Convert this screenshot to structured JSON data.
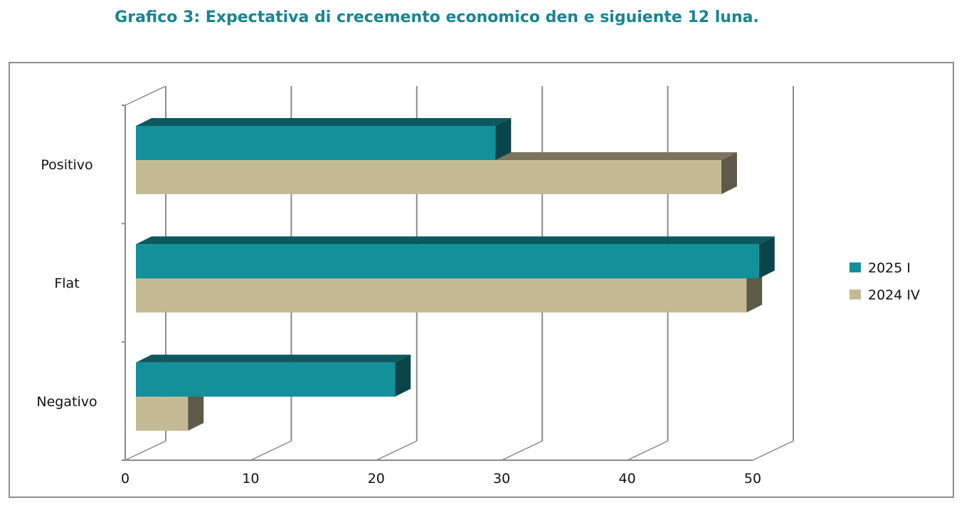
{
  "title": "Grafico 3: Expectativa di crecemento economico den e siguiente 12 luna.",
  "chart_data": {
    "type": "bar",
    "orientation": "horizontal",
    "style": "3d",
    "title": "Grafico 3: Expectativa di crecemento economico den e siguiente 12 luna.",
    "categories": [
      "Positivo",
      "Flat",
      "Negativo"
    ],
    "series": [
      {
        "name": "2025 I",
        "color": "#13909a",
        "values": [
          29.5,
          50.5,
          21.5
        ]
      },
      {
        "name": "2024 IV",
        "color": "#c4bb94",
        "values": [
          47.5,
          49.5,
          5
        ]
      }
    ],
    "xlim": [
      0,
      50
    ],
    "xticks": [
      "0",
      "10",
      "20",
      "30",
      "40",
      "50"
    ],
    "grid": true,
    "legend_position": "right"
  }
}
